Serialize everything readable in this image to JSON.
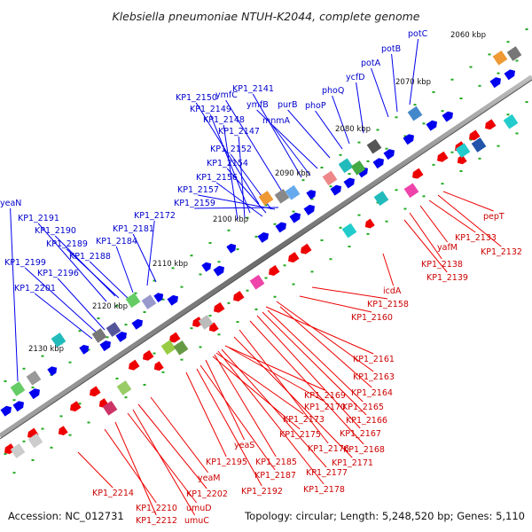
{
  "title": "Klebsiella pneumoniae NTUH-K2044, complete genome",
  "accession": "Accession: NC_012731",
  "summary": "Topology: circular; Length: 5,248,520 bp; Genes: 5,110",
  "ticks": [
    "2060 kbp",
    "2070 kbp",
    "2080 kbp",
    "2090 kbp",
    "2100 kbp",
    "2110 kbp",
    "2120 kbp",
    "2130 kbp"
  ],
  "colors": {
    "forward_strand": "#0000ee",
    "reverse_strand": "#ee0000",
    "backbone": "#707070",
    "gc_marker": "#22aa22"
  },
  "forward_labels": [
    "potC",
    "potB",
    "potA",
    "ycfD",
    "phoQ",
    "phoP",
    "ymfC",
    "KP1_2141",
    "KP1_2150",
    "ymfB",
    "purB",
    "KP1_2149",
    "mnmA",
    "KP1_2148",
    "KP1_2147",
    "KP1_2152",
    "KP1_2154",
    "KP1_2156",
    "KP1_2157",
    "KP1_2159",
    "yeaN",
    "KP1_2172",
    "KP1_2191",
    "KP1_2190",
    "KP1_2181",
    "KP1_2189",
    "KP1_2184",
    "KP1_2188",
    "KP1_2199",
    "KP1_2196",
    "KP1_2201"
  ],
  "reverse_labels": [
    "pepT",
    "KP1_2133",
    "KP1_2132",
    "yafM",
    "KP1_2138",
    "KP1_2139",
    "icdA",
    "KP1_2158",
    "KP1_2160",
    "KP1_2161",
    "KP1_2163",
    "KP1_2169",
    "KP1_2164",
    "KP1_2170",
    "KP1_2165",
    "KP1_2173",
    "KP1_2166",
    "KP1_2175",
    "KP1_2167",
    "yeaS",
    "KP1_2176",
    "KP1_2168",
    "KP1_2195",
    "KP1_2185",
    "KP1_2171",
    "KP1_2187",
    "KP1_2177",
    "yeaM",
    "KP1_2192",
    "KP1_2178",
    "KP1_2202",
    "KP1_2214",
    "umuD",
    "KP1_2210",
    "KP1_2212",
    "umuC"
  ]
}
